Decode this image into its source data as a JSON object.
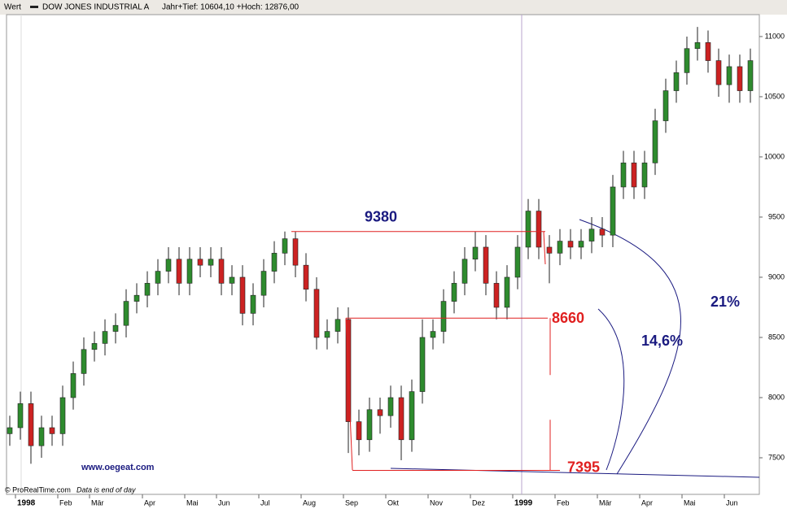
{
  "header": {
    "label": "Wert",
    "info": "Jahr+Tief: 10604,10 +Hoch: 12876,00"
  },
  "footer": {
    "source": "© ProRealTime.com",
    "note": "Data is end of day"
  },
  "chart_data": {
    "type": "candlestick",
    "categories": [
      null,
      "1998",
      null,
      null,
      null,
      "Feb",
      null,
      null,
      "Mär",
      null,
      null,
      null,
      null,
      "Apr",
      null,
      null,
      null,
      "Mai",
      null,
      null,
      "Jun",
      null,
      null,
      null,
      "Jul",
      null,
      null,
      null,
      "Aug",
      null,
      null,
      null,
      "Sep",
      null,
      null,
      null,
      "Okt",
      null,
      null,
      null,
      "Nov",
      null,
      null,
      null,
      "Dez",
      null,
      null,
      null,
      "1999",
      null,
      null,
      null,
      "Feb",
      null,
      null,
      null,
      "Mär",
      null,
      null,
      null,
      "Apr",
      null,
      null,
      null,
      "Mai",
      null,
      null,
      null,
      "Jun",
      null,
      null
    ],
    "series": [
      {
        "name": "DOW JONES INDUSTRIAL A",
        "up_color": "#2e8b2e",
        "down_color": "#cc2222",
        "open": [
          7700,
          7750,
          7950,
          7600,
          7750,
          7700,
          8000,
          8200,
          8400,
          8450,
          8550,
          8600,
          8800,
          8850,
          8950,
          9050,
          9150,
          8950,
          9150,
          9100,
          9150,
          8950,
          9000,
          8700,
          8850,
          9050,
          9200,
          9320,
          9100,
          8900,
          8500,
          8550,
          8650,
          7800,
          7650,
          7900,
          7850,
          8000,
          7650,
          8050,
          8500,
          8550,
          8800,
          8950,
          9150,
          9250,
          8950,
          8750,
          9000,
          9250,
          9550,
          9250,
          9200,
          9300,
          9250,
          9300,
          9400,
          9350,
          9750,
          9950,
          9750,
          9950,
          10300,
          10550,
          10700,
          10900,
          10950,
          10800,
          10600,
          10750,
          10550
        ],
        "high": [
          7850,
          8050,
          8050,
          7850,
          7850,
          8100,
          8300,
          8500,
          8550,
          8650,
          8700,
          8900,
          8950,
          9050,
          9150,
          9250,
          9250,
          9250,
          9250,
          9250,
          9250,
          9100,
          9100,
          8950,
          9150,
          9300,
          9380,
          9380,
          9200,
          9000,
          8650,
          8750,
          8750,
          7900,
          8000,
          8000,
          8100,
          8100,
          8150,
          8650,
          8650,
          8900,
          9050,
          9250,
          9380,
          9350,
          9050,
          9100,
          9350,
          9650,
          9650,
          9350,
          9400,
          9400,
          9400,
          9500,
          9500,
          9850,
          10050,
          10050,
          10050,
          10400,
          10650,
          10800,
          11000,
          11080,
          11050,
          10900,
          10850,
          10850,
          10900
        ],
        "low": [
          7600,
          7650,
          7450,
          7500,
          7600,
          7600,
          7900,
          8100,
          8300,
          8350,
          8450,
          8500,
          8700,
          8750,
          8850,
          8950,
          8850,
          8850,
          9000,
          9000,
          8850,
          8850,
          8600,
          8600,
          8750,
          8950,
          9100,
          9000,
          8800,
          8400,
          8400,
          8450,
          7540,
          7520,
          7550,
          7700,
          7750,
          7480,
          7550,
          7950,
          8400,
          8450,
          8700,
          8850,
          9050,
          8850,
          8650,
          8650,
          8900,
          9150,
          9150,
          8950,
          9100,
          9150,
          9150,
          9200,
          9250,
          9250,
          9650,
          9650,
          9650,
          9850,
          10200,
          10450,
          10600,
          10800,
          10700,
          10500,
          10450,
          10450,
          10450
        ],
        "close": [
          7750,
          7950,
          7600,
          7750,
          7700,
          8000,
          8200,
          8400,
          8450,
          8550,
          8600,
          8800,
          8850,
          8950,
          9050,
          9150,
          8950,
          9150,
          9100,
          9150,
          8950,
          9000,
          8700,
          8850,
          9050,
          9200,
          9320,
          9100,
          8900,
          8500,
          8550,
          8650,
          7800,
          7650,
          7900,
          7850,
          8000,
          7650,
          8050,
          8500,
          8550,
          8800,
          8950,
          9150,
          9250,
          8950,
          8750,
          9000,
          9250,
          9550,
          9250,
          9200,
          9300,
          9250,
          9300,
          9400,
          9350,
          9750,
          9950,
          9750,
          9950,
          10300,
          10550,
          10700,
          10900,
          10950,
          10800,
          10600,
          10750,
          10550,
          10800
        ]
      }
    ],
    "ylim": [
      7196,
      11182
    ],
    "yticks": [
      7500,
      8000,
      8500,
      9000,
      9500,
      10000,
      10500,
      11000
    ],
    "annotations": [
      {
        "label": "9380",
        "value": 9380
      },
      {
        "label": "8660",
        "value": 8660
      },
      {
        "label": "7395",
        "value": 7395
      },
      {
        "label": "14,6%"
      },
      {
        "label": "21%"
      }
    ],
    "watermark": "www.oegeat.com"
  }
}
